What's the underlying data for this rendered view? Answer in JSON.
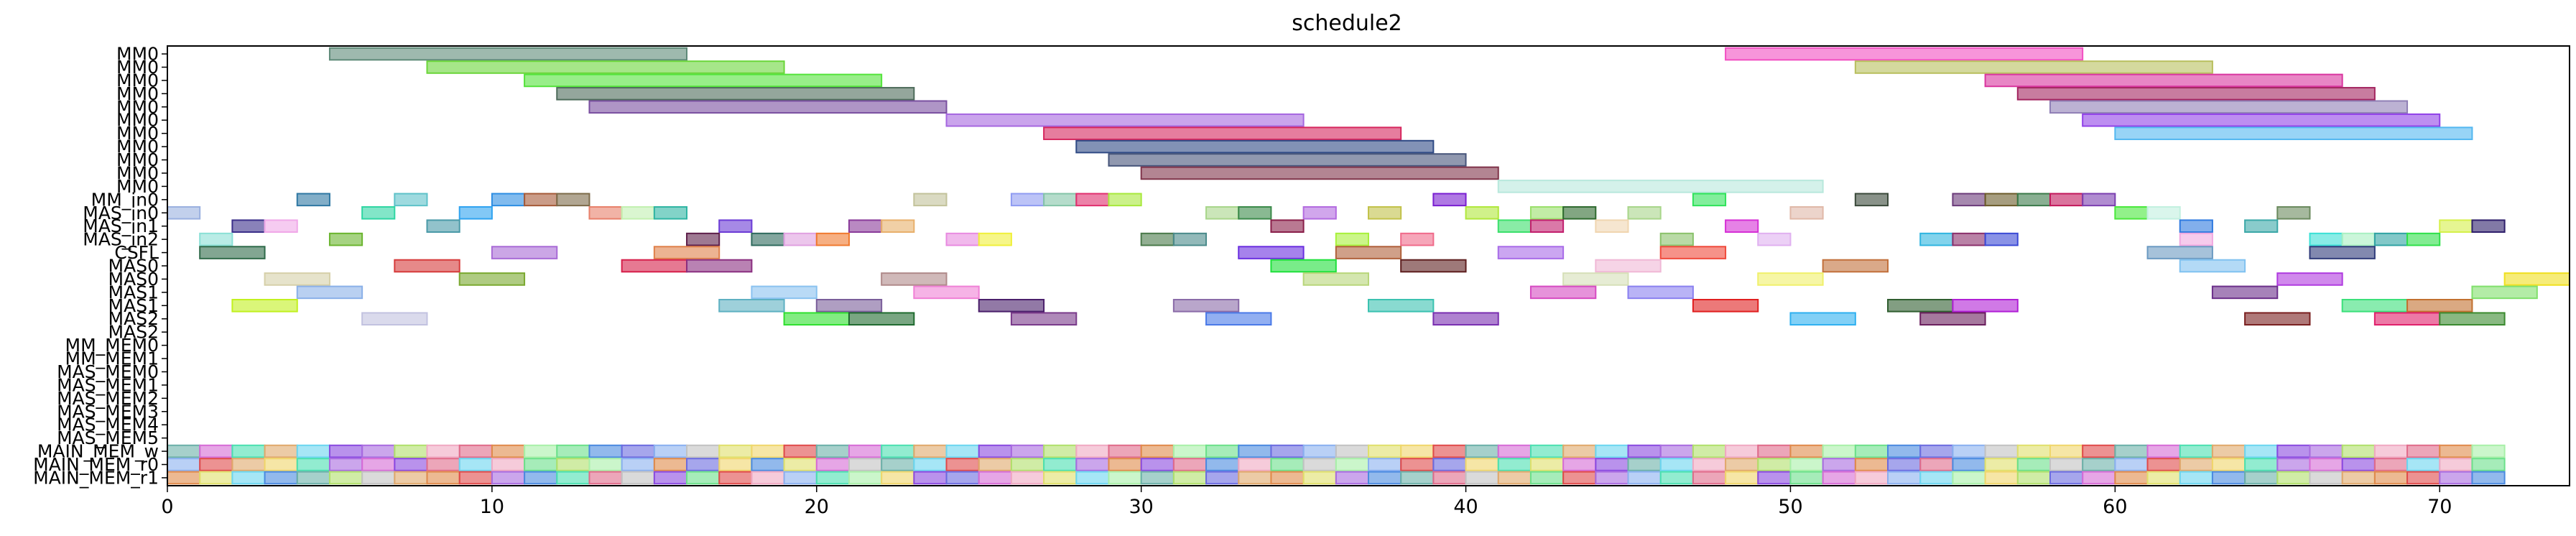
{
  "chart_data": {
    "type": "gantt",
    "title": "schedule2",
    "xlim": [
      0,
      74
    ],
    "xticks": [
      0,
      10,
      20,
      30,
      40,
      50,
      60,
      70
    ],
    "rows": [
      "MM0",
      "MM0",
      "MM0",
      "MM0",
      "MM0",
      "MM0",
      "MM0",
      "MM0",
      "MM0",
      "MM0",
      "MM0",
      "MM_in0",
      "MAS_in0",
      "MAS_in1",
      "MAS_in2",
      "CSFL",
      "MAS0",
      "MAS0",
      "MAS1",
      "MAS1",
      "MAS2",
      "MAS2",
      "MM_MEM0",
      "MM_MEM1",
      "MAS_MEM0",
      "MAS_MEM1",
      "MAS_MEM2",
      "MAS_MEM3",
      "MAS_MEM4",
      "MAS_MEM5",
      "MAIN_MEM_w",
      "MAIN_MEM_r0",
      "MAIN_MEM_r1"
    ],
    "bars": [
      {
        "row": 0,
        "start": 5,
        "end": 16,
        "color": "#5e8a78"
      },
      {
        "row": 0,
        "start": 48,
        "end": 59,
        "color": "#f24fc2"
      },
      {
        "row": 1,
        "start": 8,
        "end": 19,
        "color": "#6bd63a"
      },
      {
        "row": 1,
        "start": 52,
        "end": 63,
        "color": "#b8bf5e"
      },
      {
        "row": 2,
        "start": 11,
        "end": 22,
        "color": "#54e33b"
      },
      {
        "row": 2,
        "start": 56,
        "end": 67,
        "color": "#d9369f"
      },
      {
        "row": 3,
        "start": 12,
        "end": 23,
        "color": "#4d6b5a"
      },
      {
        "row": 3,
        "start": 57,
        "end": 68,
        "color": "#a3245f"
      },
      {
        "row": 4,
        "start": 13,
        "end": 24,
        "color": "#7a4fa0"
      },
      {
        "row": 4,
        "start": 58,
        "end": 69,
        "color": "#8f7fb5"
      },
      {
        "row": 5,
        "start": 24,
        "end": 35,
        "color": "#a667e0"
      },
      {
        "row": 5,
        "start": 59,
        "end": 70,
        "color": "#9142e8"
      },
      {
        "row": 6,
        "start": 27,
        "end": 38,
        "color": "#d6275e"
      },
      {
        "row": 6,
        "start": 60,
        "end": 71,
        "color": "#53b7f0"
      },
      {
        "row": 7,
        "start": 28,
        "end": 39,
        "color": "#2f4a85"
      },
      {
        "row": 8,
        "start": 29,
        "end": 40,
        "color": "#46547a"
      },
      {
        "row": 9,
        "start": 30,
        "end": 41,
        "color": "#80344a"
      },
      {
        "row": 10,
        "start": 41,
        "end": 51,
        "color": "#b8e8dc"
      },
      {
        "row": 11,
        "start": 4,
        "end": 5,
        "color": "#2f78a3"
      },
      {
        "row": 11,
        "start": 7,
        "end": 8,
        "color": "#5ec2c9"
      },
      {
        "row": 11,
        "start": 10,
        "end": 11,
        "color": "#2d8ee3"
      },
      {
        "row": 11,
        "start": 11,
        "end": 12,
        "color": "#a65a38"
      },
      {
        "row": 11,
        "start": 12,
        "end": 13,
        "color": "#7d6b4a"
      },
      {
        "row": 11,
        "start": 23,
        "end": 24,
        "color": "#c2c29a"
      },
      {
        "row": 11,
        "start": 26,
        "end": 27,
        "color": "#8f9bf2"
      },
      {
        "row": 11,
        "start": 27,
        "end": 28,
        "color": "#84c4a8"
      },
      {
        "row": 11,
        "start": 28,
        "end": 29,
        "color": "#e02f6e"
      },
      {
        "row": 11,
        "start": 29,
        "end": 30,
        "color": "#a8e83c"
      },
      {
        "row": 11,
        "start": 39,
        "end": 40,
        "color": "#7a1fd1"
      },
      {
        "row": 11,
        "start": 47,
        "end": 48,
        "color": "#2fe35a"
      },
      {
        "row": 11,
        "start": 52,
        "end": 53,
        "color": "#3b4a3b"
      },
      {
        "row": 11,
        "start": 55,
        "end": 56,
        "color": "#6b3b7a"
      },
      {
        "row": 11,
        "start": 56,
        "end": 57,
        "color": "#6b5b2a"
      },
      {
        "row": 11,
        "start": 57,
        "end": 58,
        "color": "#3b7a4a"
      },
      {
        "row": 11,
        "start": 58,
        "end": 59,
        "color": "#c2185b"
      },
      {
        "row": 11,
        "start": 59,
        "end": 60,
        "color": "#7b3fb0"
      },
      {
        "row": 12,
        "start": 0,
        "end": 1,
        "color": "#9ab0e0"
      },
      {
        "row": 12,
        "start": 6,
        "end": 7,
        "color": "#2fd6a3"
      },
      {
        "row": 12,
        "start": 9,
        "end": 10,
        "color": "#2fa3f0"
      },
      {
        "row": 12,
        "start": 13,
        "end": 14,
        "color": "#e8806b"
      },
      {
        "row": 12,
        "start": 14,
        "end": 15,
        "color": "#c2f0b0"
      },
      {
        "row": 12,
        "start": 15,
        "end": 16,
        "color": "#2fb5a3"
      },
      {
        "row": 12,
        "start": 32,
        "end": 33,
        "color": "#a8d68a"
      },
      {
        "row": 12,
        "start": 33,
        "end": 34,
        "color": "#3b8a4a"
      },
      {
        "row": 12,
        "start": 35,
        "end": 36,
        "color": "#b36be0"
      },
      {
        "row": 12,
        "start": 37,
        "end": 38,
        "color": "#c2c24a"
      },
      {
        "row": 12,
        "start": 40,
        "end": 41,
        "color": "#b0e83c"
      },
      {
        "row": 12,
        "start": 42,
        "end": 43,
        "color": "#9ae06b"
      },
      {
        "row": 12,
        "start": 43,
        "end": 44,
        "color": "#2f6b2f"
      },
      {
        "row": 12,
        "start": 45,
        "end": 46,
        "color": "#a8d68a"
      },
      {
        "row": 12,
        "start": 50,
        "end": 51,
        "color": "#e0b8a8"
      },
      {
        "row": 12,
        "start": 60,
        "end": 61,
        "color": "#4ae83c"
      },
      {
        "row": 12,
        "start": 61,
        "end": 62,
        "color": "#c2f0e0"
      },
      {
        "row": 12,
        "start": 65,
        "end": 66,
        "color": "#6b8a5e"
      },
      {
        "row": 13,
        "start": 2,
        "end": 3,
        "color": "#3b2f8a"
      },
      {
        "row": 13,
        "start": 3,
        "end": 4,
        "color": "#f0a8e8"
      },
      {
        "row": 13,
        "start": 8,
        "end": 9,
        "color": "#4a9aa8"
      },
      {
        "row": 13,
        "start": 17,
        "end": 18,
        "color": "#6b3bd6"
      },
      {
        "row": 13,
        "start": 21,
        "end": 22,
        "color": "#8a3b9a"
      },
      {
        "row": 13,
        "start": 22,
        "end": 23,
        "color": "#e8b06b"
      },
      {
        "row": 13,
        "start": 34,
        "end": 35,
        "color": "#8a1f4a"
      },
      {
        "row": 13,
        "start": 41,
        "end": 42,
        "color": "#3be06b"
      },
      {
        "row": 13,
        "start": 42,
        "end": 43,
        "color": "#c21f6e"
      },
      {
        "row": 13,
        "start": 44,
        "end": 45,
        "color": "#f0d6b0"
      },
      {
        "row": 13,
        "start": 48,
        "end": 49,
        "color": "#d62fd6"
      },
      {
        "row": 13,
        "start": 62,
        "end": 63,
        "color": "#2f7ae0"
      },
      {
        "row": 13,
        "start": 64,
        "end": 65,
        "color": "#3ba8a8"
      },
      {
        "row": 13,
        "start": 70,
        "end": 71,
        "color": "#d6f04a"
      },
      {
        "row": 13,
        "start": 71,
        "end": 72,
        "color": "#2f1f6b"
      },
      {
        "row": 14,
        "start": 1,
        "end": 2,
        "color": "#8ae0d6"
      },
      {
        "row": 14,
        "start": 5,
        "end": 6,
        "color": "#6bb52f"
      },
      {
        "row": 14,
        "start": 16,
        "end": 17,
        "color": "#5e1f4a"
      },
      {
        "row": 14,
        "start": 18,
        "end": 19,
        "color": "#2f6b5e"
      },
      {
        "row": 14,
        "start": 19,
        "end": 20,
        "color": "#e0a0e0"
      },
      {
        "row": 14,
        "start": 20,
        "end": 21,
        "color": "#f07a2f"
      },
      {
        "row": 14,
        "start": 24,
        "end": 25,
        "color": "#e88ae0"
      },
      {
        "row": 14,
        "start": 25,
        "end": 26,
        "color": "#f0f03b"
      },
      {
        "row": 14,
        "start": 30,
        "end": 31,
        "color": "#4a7a4a"
      },
      {
        "row": 14,
        "start": 31,
        "end": 32,
        "color": "#4a8a8a"
      },
      {
        "row": 14,
        "start": 36,
        "end": 37,
        "color": "#a8f03b"
      },
      {
        "row": 14,
        "start": 38,
        "end": 39,
        "color": "#f06b8a"
      },
      {
        "row": 14,
        "start": 46,
        "end": 47,
        "color": "#8ac26b"
      },
      {
        "row": 14,
        "start": 49,
        "end": 50,
        "color": "#e0b0f0"
      },
      {
        "row": 14,
        "start": 54,
        "end": 55,
        "color": "#2fb5e0"
      },
      {
        "row": 14,
        "start": 55,
        "end": 56,
        "color": "#8a2f6b"
      },
      {
        "row": 14,
        "start": 56,
        "end": 57,
        "color": "#3b4ad6"
      },
      {
        "row": 14,
        "start": 62,
        "end": 63,
        "color": "#f0a8e0"
      },
      {
        "row": 14,
        "start": 66,
        "end": 67,
        "color": "#3be0d6"
      },
      {
        "row": 14,
        "start": 67,
        "end": 68,
        "color": "#a8f0c2"
      },
      {
        "row": 14,
        "start": 68,
        "end": 69,
        "color": "#2fa3a3"
      },
      {
        "row": 14,
        "start": 69,
        "end": 70,
        "color": "#2fe04a"
      },
      {
        "row": 15,
        "start": 1,
        "end": 3,
        "color": "#2f6b4a"
      },
      {
        "row": 15,
        "start": 10,
        "end": 12,
        "color": "#a86bd6"
      },
      {
        "row": 15,
        "start": 15,
        "end": 17,
        "color": "#e0804a"
      },
      {
        "row": 15,
        "start": 33,
        "end": 35,
        "color": "#6b2fe0"
      },
      {
        "row": 15,
        "start": 36,
        "end": 38,
        "color": "#b0603b"
      },
      {
        "row": 15,
        "start": 41,
        "end": 43,
        "color": "#a86be8"
      },
      {
        "row": 15,
        "start": 46,
        "end": 48,
        "color": "#f04a3b"
      },
      {
        "row": 15,
        "start": 61,
        "end": 63,
        "color": "#6b9ac2"
      },
      {
        "row": 15,
        "start": 66,
        "end": 68,
        "color": "#2f3b7a"
      },
      {
        "row": 16,
        "start": 7,
        "end": 9,
        "color": "#d63b3b"
      },
      {
        "row": 16,
        "start": 14,
        "end": 16,
        "color": "#d61f4a"
      },
      {
        "row": 16,
        "start": 16,
        "end": 18,
        "color": "#8a2f80"
      },
      {
        "row": 16,
        "start": 34,
        "end": 36,
        "color": "#1fe03b"
      },
      {
        "row": 16,
        "start": 38,
        "end": 40,
        "color": "#5e1f1f"
      },
      {
        "row": 16,
        "start": 44,
        "end": 46,
        "color": "#f0b8d6"
      },
      {
        "row": 16,
        "start": 51,
        "end": 53,
        "color": "#c2703b"
      },
      {
        "row": 16,
        "start": 62,
        "end": 64,
        "color": "#80c2f0"
      },
      {
        "row": 17,
        "start": 3,
        "end": 5,
        "color": "#d6d0a8"
      },
      {
        "row": 17,
        "start": 9,
        "end": 11,
        "color": "#7aa82f"
      },
      {
        "row": 17,
        "start": 22,
        "end": 24,
        "color": "#b08a8a"
      },
      {
        "row": 17,
        "start": 35,
        "end": 37,
        "color": "#b8d67a"
      },
      {
        "row": 17,
        "start": 43,
        "end": 45,
        "color": "#d6e0b8"
      },
      {
        "row": 17,
        "start": 49,
        "end": 51,
        "color": "#f0f06b"
      },
      {
        "row": 17,
        "start": 65,
        "end": 67,
        "color": "#b03be0"
      },
      {
        "row": 17,
        "start": 72,
        "end": 74,
        "color": "#f0e01f"
      },
      {
        "row": 18,
        "start": 4,
        "end": 6,
        "color": "#8ab0e8"
      },
      {
        "row": 18,
        "start": 18,
        "end": 20,
        "color": "#8ac2f0"
      },
      {
        "row": 18,
        "start": 23,
        "end": 25,
        "color": "#f080d6"
      },
      {
        "row": 18,
        "start": 42,
        "end": 44,
        "color": "#d64ac2"
      },
      {
        "row": 18,
        "start": 45,
        "end": 47,
        "color": "#8a80f0"
      },
      {
        "row": 18,
        "start": 63,
        "end": 65,
        "color": "#6b2f8a"
      },
      {
        "row": 18,
        "start": 71,
        "end": 73,
        "color": "#80e06b"
      },
      {
        "row": 19,
        "start": 2,
        "end": 4,
        "color": "#c2f01f"
      },
      {
        "row": 19,
        "start": 17,
        "end": 19,
        "color": "#5eb0c2"
      },
      {
        "row": 19,
        "start": 20,
        "end": 22,
        "color": "#7a5e9a"
      },
      {
        "row": 19,
        "start": 25,
        "end": 27,
        "color": "#4a1f6b"
      },
      {
        "row": 19,
        "start": 31,
        "end": 33,
        "color": "#8a6ba8"
      },
      {
        "row": 19,
        "start": 37,
        "end": 39,
        "color": "#3bc2b0"
      },
      {
        "row": 19,
        "start": 47,
        "end": 49,
        "color": "#e01f1f"
      },
      {
        "row": 19,
        "start": 53,
        "end": 55,
        "color": "#2f5e2f"
      },
      {
        "row": 19,
        "start": 55,
        "end": 57,
        "color": "#b01fd6"
      },
      {
        "row": 19,
        "start": 67,
        "end": 69,
        "color": "#3be07a"
      },
      {
        "row": 19,
        "start": 69,
        "end": 71,
        "color": "#c2702f"
      },
      {
        "row": 20,
        "start": 6,
        "end": 8,
        "color": "#c2c2e0"
      },
      {
        "row": 20,
        "start": 19,
        "end": 21,
        "color": "#2fe02f"
      },
      {
        "row": 20,
        "start": 21,
        "end": 23,
        "color": "#1f6b2f"
      },
      {
        "row": 20,
        "start": 26,
        "end": 28,
        "color": "#7a3b8a"
      },
      {
        "row": 20,
        "start": 32,
        "end": 34,
        "color": "#4a7ae8"
      },
      {
        "row": 20,
        "start": 39,
        "end": 41,
        "color": "#7a2fb0"
      },
      {
        "row": 20,
        "start": 50,
        "end": 52,
        "color": "#2fb0f0"
      },
      {
        "row": 20,
        "start": 54,
        "end": 56,
        "color": "#6b1f5e"
      },
      {
        "row": 20,
        "start": 64,
        "end": 66,
        "color": "#7a1f1f"
      },
      {
        "row": 20,
        "start": 68,
        "end": 70,
        "color": "#e01f6b"
      },
      {
        "row": 20,
        "start": 70,
        "end": 72,
        "color": "#3b8a2f"
      }
    ],
    "memory_rows": [
      30,
      31,
      32
    ],
    "memory_span": [
      0,
      72
    ],
    "memory_palette": [
      "#6bb0a8",
      "#e0a86b",
      "#a86be0",
      "#e06b8a",
      "#6be08a",
      "#8ab0f0",
      "#f0d66b",
      "#d66bd6",
      "#6bd6f0",
      "#b0e06b",
      "#e08a4a",
      "#4a8ae0",
      "#c2c2c2",
      "#e04a4a",
      "#4ae0b0",
      "#8a4ae0",
      "#f0a8c2",
      "#a8f0a8",
      "#6b6be0",
      "#e0e06b"
    ]
  }
}
